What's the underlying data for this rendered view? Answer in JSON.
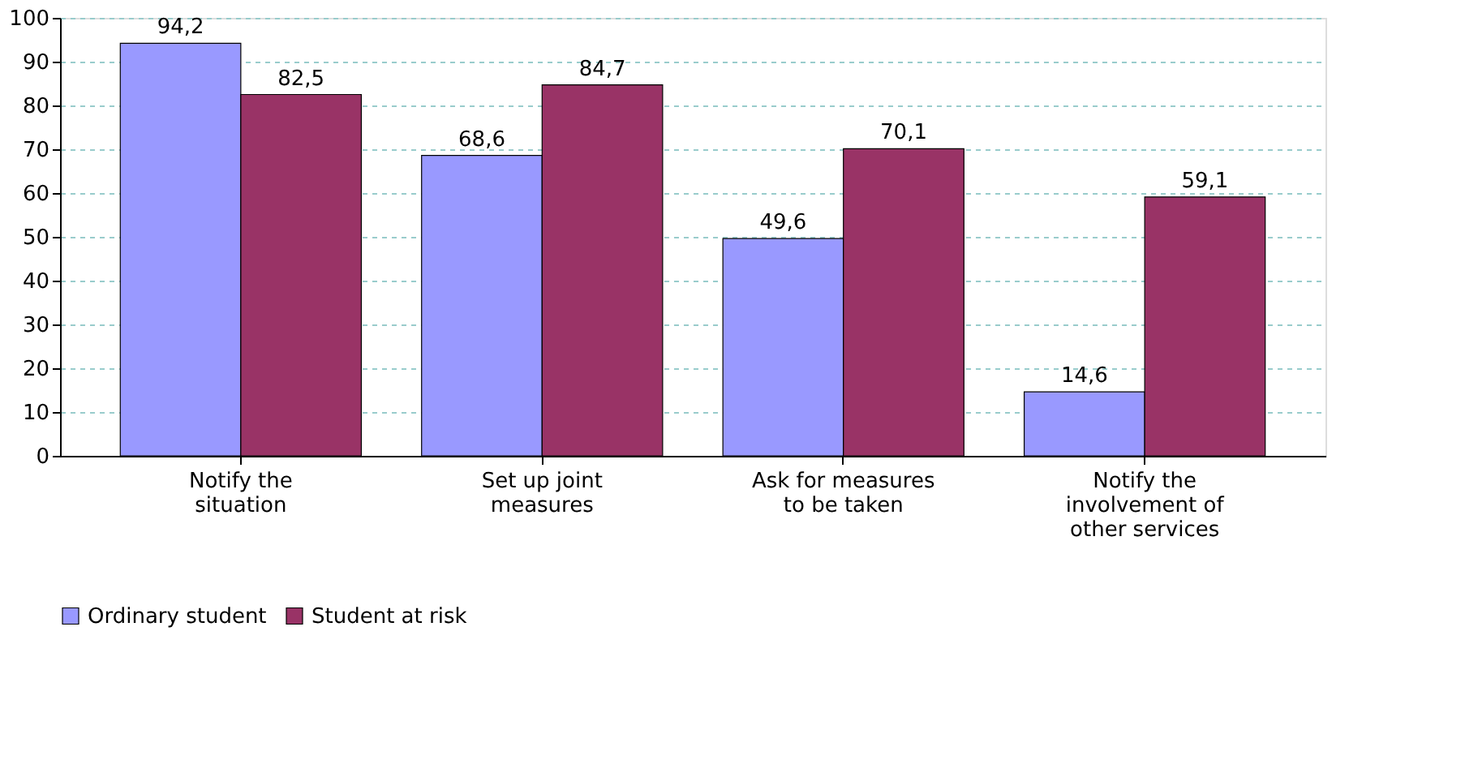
{
  "chart_data": {
    "type": "bar",
    "categories": [
      "Notify the situation",
      "Set up joint measures",
      "Ask for measures to be taken",
      "Notify the involvement of other services"
    ],
    "series": [
      {
        "name": "Ordinary student",
        "color": "#9999ff",
        "values": [
          94.2,
          68.6,
          49.6,
          14.6
        ],
        "value_labels": [
          "94,2",
          "68,6",
          "49,6",
          "14,6"
        ]
      },
      {
        "name": "Student at risk",
        "color": "#993366",
        "values": [
          82.5,
          84.7,
          70.1,
          59.1
        ],
        "value_labels": [
          "82,5",
          "84,7",
          "70,1",
          "59,1"
        ]
      }
    ],
    "ylim": [
      0,
      100
    ],
    "yticks": [
      0,
      10,
      20,
      30,
      40,
      50,
      60,
      70,
      80,
      90,
      100
    ],
    "grid": "y",
    "legend": "bottom"
  }
}
